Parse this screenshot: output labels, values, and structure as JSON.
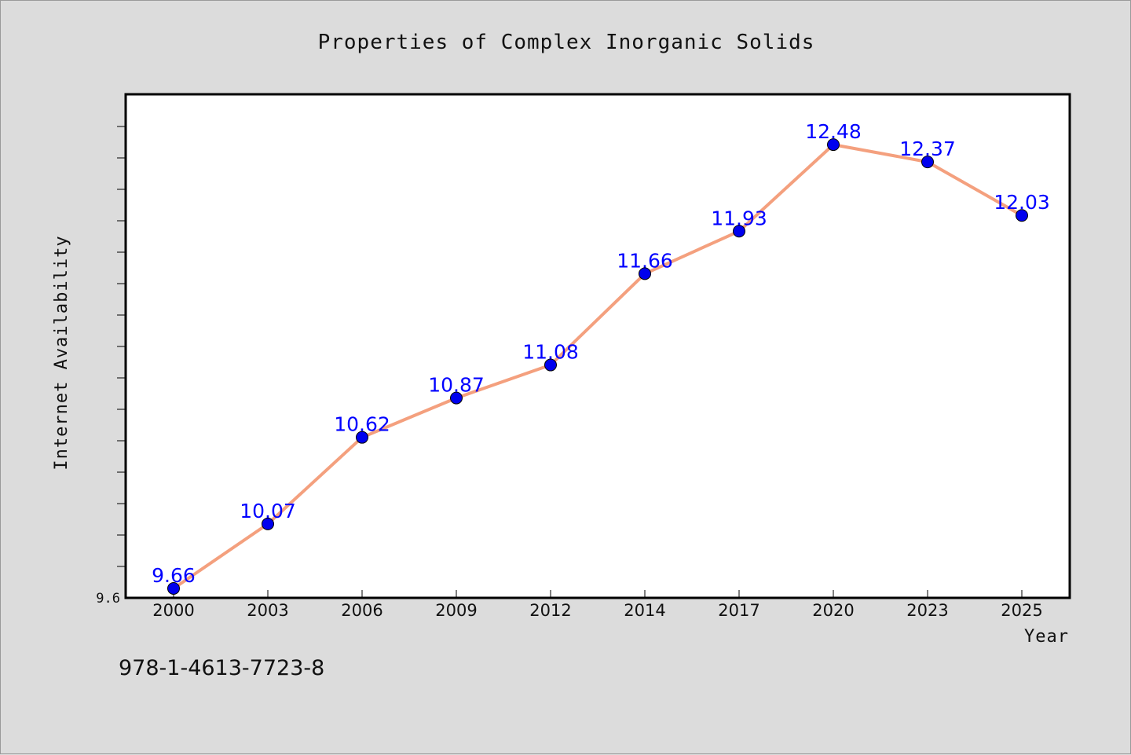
{
  "chart_data": {
    "type": "line",
    "title": "Properties of Complex Inorganic Solids",
    "xlabel": "Year",
    "ylabel": "Internet Availability",
    "categories": [
      "2000",
      "2003",
      "2006",
      "2009",
      "2012",
      "2014",
      "2017",
      "2020",
      "2023",
      "2025"
    ],
    "series": [
      {
        "values": [
          9.66,
          10.07,
          10.62,
          10.87,
          11.08,
          11.66,
          11.93,
          12.48,
          12.37,
          12.03
        ]
      }
    ],
    "y_tick_labels": [
      "9.6"
    ],
    "ylim": [
      9.6,
      12.8
    ],
    "grid": false,
    "colors": {
      "line": "#f4a07e",
      "marker": "#0000ee",
      "label": "#0000ff"
    }
  },
  "footnote": "978-1-4613-7723-8"
}
